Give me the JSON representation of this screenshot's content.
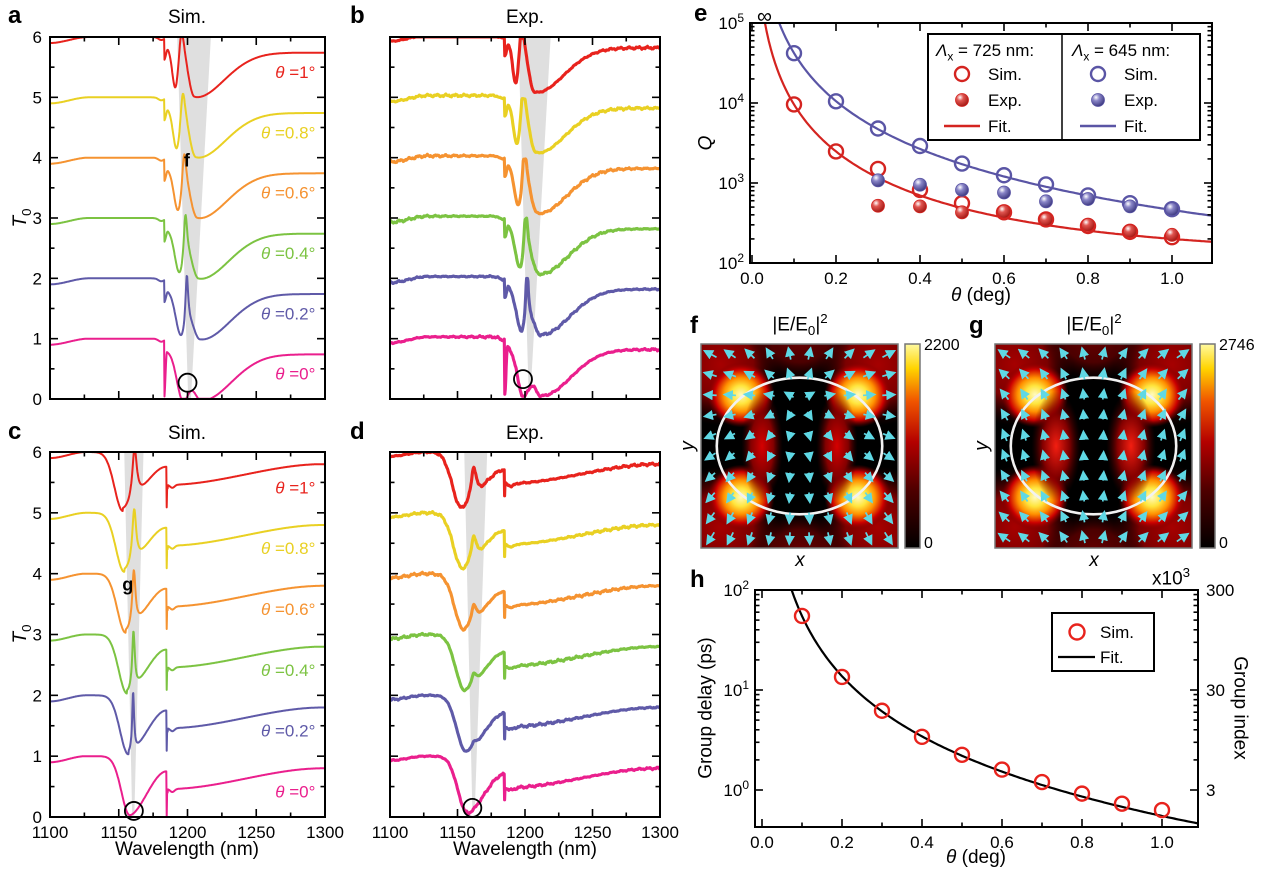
{
  "colors": {
    "curve_red": "#e8231d",
    "curve_yellow": "#e9d023",
    "curve_orange": "#f59331",
    "curve_green": "#7cc342",
    "curve_blue": "#5f5aa8",
    "curve_magenta": "#ea1f8d",
    "fit_red": "#d42420",
    "fit_blue": "#5a55a5",
    "black": "#000000",
    "wedge_gray": "#dcdcdc",
    "arrow_cyan": "#5fd8e4"
  },
  "chart_data": {
    "spectra_common": {
      "type": "line",
      "x_label": "Wavelength (nm)",
      "y_label": "*T*_{0}",
      "x_range": [
        1100,
        1300
      ],
      "y_range": [
        0,
        6
      ],
      "x_ticks_major": [
        1100,
        1150,
        1200,
        1250,
        1300
      ],
      "x_tick_minor_step": 25,
      "y_ticks": [
        0,
        1,
        2,
        3,
        4,
        5,
        6
      ],
      "thetas": [
        1,
        0.8,
        0.6,
        0.4,
        0.2,
        0
      ],
      "offsets": [
        5,
        4,
        3,
        2,
        1,
        0
      ],
      "theta_labels": [
        "θ =1°",
        "θ =0.8°",
        "θ =0.6°",
        "θ =0.4°",
        "θ =0.2°",
        "θ =0°"
      ],
      "curve_colors": [
        "#e8231d",
        "#e9d023",
        "#f59331",
        "#7cc342",
        "#5f5aa8",
        "#ea1f8d"
      ]
    },
    "panel_a": {
      "letter": "a",
      "title": "Sim.",
      "kind": "simA",
      "anomaly_nm": 1183,
      "peak_nm_theta1": 1195.5,
      "peak_shift_nm": 5,
      "broad_dip_offset_nm": 9.5,
      "wedge": [
        [
          1192.5,
          6
        ],
        [
          1217,
          6
        ],
        [
          1202.5,
          0
        ],
        [
          1200.5,
          0
        ]
      ],
      "circle_marker": [
        1200,
        0.27
      ],
      "annotation": {
        "text": "f",
        "at": [
          1199.5,
          3.85
        ]
      },
      "show_theta_labels": true,
      "show_x_tick_labels": false,
      "show_y_tick_labels": true,
      "noise": 0
    },
    "panel_b": {
      "letter": "b",
      "title": "Exp.",
      "kind": "expA",
      "anomaly_nm": 1185,
      "peak_nm_theta1": 1197.5,
      "peak_shift_nm": 5,
      "broad_dip_offset_nm": 9.5,
      "wedge": [
        [
          1195,
          6
        ],
        [
          1219,
          6
        ],
        [
          1204.5,
          0.25
        ],
        [
          1202.5,
          0.25
        ]
      ],
      "circle_marker": [
        1198.5,
        0.33
      ],
      "show_theta_labels": false,
      "show_x_tick_labels": false,
      "show_y_tick_labels": false,
      "noise": 0.018
    },
    "panel_c": {
      "letter": "c",
      "title": "Sim.",
      "kind": "simC",
      "anomaly_nm": 1184.6,
      "dip_nm_theta0": 1158,
      "dip_shift_nm": 5,
      "peak_nm": 1160.2,
      "wedge": [
        [
          1154,
          6
        ],
        [
          1168,
          6
        ],
        [
          1161.3,
          0
        ],
        [
          1159.8,
          0
        ]
      ],
      "circle_marker": [
        1161,
        0.1
      ],
      "annotation": {
        "text": "g",
        "at": [
          1156.5,
          3.72
        ]
      },
      "show_theta_labels": true,
      "show_x_tick_labels": true,
      "show_y_tick_labels": true,
      "noise": 0
    },
    "panel_d": {
      "letter": "d",
      "title": "Exp.",
      "kind": "expC",
      "anomaly_nm": 1184.6,
      "dip_nm_theta0": 1157,
      "dip_shift_nm": 4,
      "peak_nm": 1162,
      "wedge": [
        [
          1155,
          6
        ],
        [
          1172,
          6
        ],
        [
          1162.8,
          0.1
        ],
        [
          1161,
          0.1
        ]
      ],
      "circle_marker": [
        1161,
        0.15
      ],
      "show_theta_labels": false,
      "show_x_tick_labels": true,
      "show_y_tick_labels": false,
      "noise": 0.018
    },
    "panel_e": {
      "type": "scatter",
      "letter": "e",
      "x_label": "*θ* (deg)",
      "y_label": "*Q*",
      "x_range": [
        0,
        1.1
      ],
      "x_ticks": [
        0,
        0.2,
        0.4,
        0.6,
        0.8,
        1.0
      ],
      "y_log_decades": [
        2,
        3,
        4,
        5
      ],
      "infinity_label": "∞",
      "legend": {
        "columns": [
          {
            "header": "*Λ*_{x} = 725 nm:",
            "color": "#d42420",
            "items": [
              {
                "marker": "open",
                "label": "Sim."
              },
              {
                "marker": "ball",
                "label": "Exp."
              },
              {
                "marker": "line",
                "label": "Fit."
              }
            ]
          },
          {
            "header": "*Λ*_{x} = 645 nm:",
            "color": "#5a55a5",
            "items": [
              {
                "marker": "open",
                "label": "Sim."
              },
              {
                "marker": "ball",
                "label": "Exp."
              },
              {
                "marker": "line",
                "label": "Fit."
              }
            ]
          }
        ]
      },
      "series": [
        {
          "name": "725nm Sim.",
          "style": "open",
          "color": "#d42420",
          "theta": [
            0.1,
            0.2,
            0.3,
            0.4,
            0.5,
            0.6,
            0.7,
            0.8,
            0.9,
            1.0
          ],
          "q": [
            9600,
            2480,
            1500,
            820,
            560,
            430,
            350,
            290,
            245,
            210
          ]
        },
        {
          "name": "725nm Exp.",
          "style": "ball",
          "color": "#d42420",
          "theta": [
            0.3,
            0.4,
            0.5,
            0.6,
            0.7,
            0.8,
            0.9,
            1.0
          ],
          "q": [
            520,
            510,
            430,
            440,
            350,
            300,
            250,
            225
          ]
        },
        {
          "name": "645nm Sim.",
          "style": "open",
          "color": "#5a55a5",
          "theta": [
            0.1,
            0.2,
            0.3,
            0.4,
            0.5,
            0.6,
            0.7,
            0.8,
            0.9,
            1.0
          ],
          "q": [
            42000,
            10500,
            4800,
            2900,
            1750,
            1250,
            960,
            700,
            560,
            470
          ]
        },
        {
          "name": "645nm Exp.",
          "style": "ball",
          "color": "#5a55a5",
          "theta": [
            0.3,
            0.4,
            0.5,
            0.6,
            0.7,
            0.8,
            0.9,
            1.0
          ],
          "q": [
            1080,
            950,
            820,
            760,
            590,
            630,
            510,
            470
          ]
        },
        {
          "name": "725nm Fit.",
          "style": "fit",
          "color": "#d42420",
          "fit": {
            "a": 95,
            "b": 105
          }
        },
        {
          "name": "645nm Fit.",
          "style": "fit",
          "color": "#5a55a5",
          "fit": {
            "a": 420,
            "b": 40
          }
        }
      ]
    },
    "panel_f": {
      "type": "heatmap",
      "letter": "f",
      "title": "|E/E_{0}|^{2}",
      "x_label": "*x*",
      "y_label": "*y*",
      "colorbar_max": "2200",
      "colorbar_min": "0",
      "field": "f"
    },
    "panel_g": {
      "type": "heatmap",
      "letter": "g",
      "title": "|E/E_{0}|^{2}",
      "x_label": "*x*",
      "y_label": "*y*",
      "colorbar_max": "2746",
      "colorbar_min": "0",
      "field": "g"
    },
    "panel_h": {
      "type": "scatter",
      "letter": "h",
      "x_label": "*θ* (deg)",
      "y_label_left": "Group delay (ps)",
      "y_label_right": "Group index",
      "right_axis_scale": "x10^{3}",
      "right_tick_labels": [
        "300",
        "30",
        "3"
      ],
      "x_range": [
        0,
        1.09
      ],
      "x_ticks": [
        0,
        0.2,
        0.4,
        0.6,
        0.8,
        1.0
      ],
      "y_log_decades": [
        0,
        1,
        2
      ],
      "legend": {
        "items": [
          {
            "marker": "open",
            "label": "Sim.",
            "color": "#e8231d"
          },
          {
            "marker": "line",
            "label": "Fit.",
            "color": "#000000"
          }
        ]
      },
      "series": [
        {
          "name": "Sim.",
          "style": "open",
          "color": "#e8231d",
          "theta": [
            0.1,
            0.2,
            0.3,
            0.4,
            0.5,
            0.6,
            0.7,
            0.8,
            0.9,
            1.0
          ],
          "delay_ps": [
            55,
            13.5,
            6.2,
            3.4,
            2.25,
            1.6,
            1.2,
            0.92,
            0.73,
            0.63
          ]
        },
        {
          "name": "Fit.",
          "style": "fit",
          "color": "#000000",
          "fit": {
            "a": 0.55,
            "b": 0
          }
        }
      ]
    }
  }
}
